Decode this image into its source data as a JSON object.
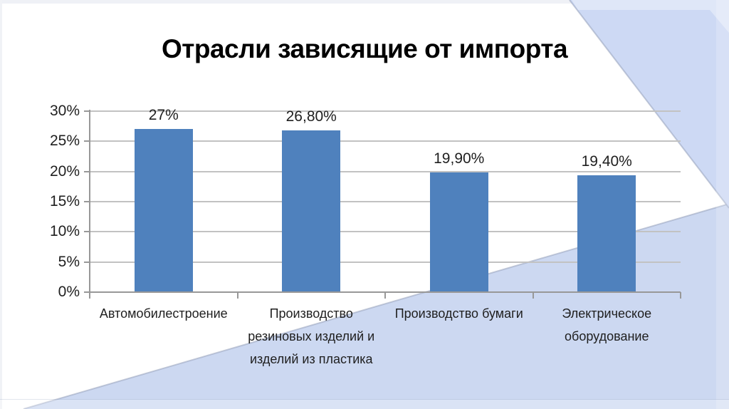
{
  "slide": {
    "kind": "presentation-slide"
  },
  "colors": {
    "bar": "#4f81bd",
    "gridline": "#c2c2c2",
    "axis": "#989898",
    "band": "#ccd8f1",
    "corner_triangle": "#cdd9f4",
    "corner_highlight": "#dfe7f8",
    "top_edge": "#eff1f6",
    "left_edge": "#f0f2f6"
  },
  "chart_data": {
    "type": "bar",
    "title": "Отрасли зависящие от импорта",
    "categories": [
      "Автомобилестроение",
      "Производство резиновых изделий и изделий из пластика",
      "Производство бумаги",
      "Электрическое оборудование"
    ],
    "values": [
      27,
      26.8,
      19.9,
      19.4
    ],
    "value_labels": [
      "27%",
      "26,80%",
      "19,90%",
      "19,40%"
    ],
    "y_ticks": [
      0,
      5,
      10,
      15,
      20,
      25,
      30
    ],
    "y_tick_labels": [
      "0%",
      "5%",
      "10%",
      "15%",
      "20%",
      "25%",
      "30%"
    ],
    "ylim": [
      0,
      30
    ],
    "xlabel": "",
    "ylabel": "",
    "grid": "on",
    "legend": "none"
  }
}
